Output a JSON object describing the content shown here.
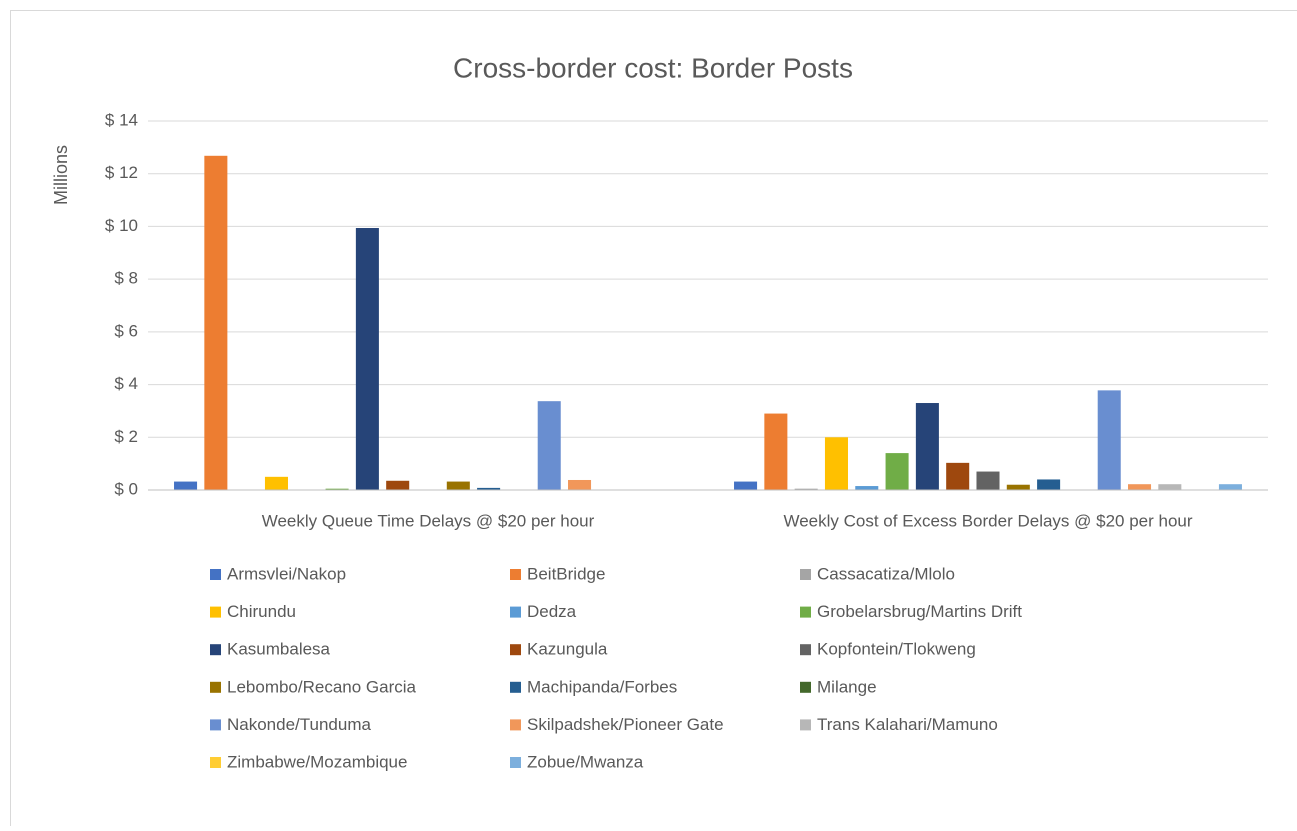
{
  "chart_data": {
    "type": "bar",
    "title": "Cross-border cost: Border Posts",
    "y_label": "Millions",
    "categories": [
      "Weekly Queue Time Delays @ $20 per hour",
      "Weekly Cost of Excess Border Delays @  $20 per hour"
    ],
    "series": [
      {
        "name": "Armsvlei/Nakop",
        "color": "#4472c4",
        "values": [
          0.32,
          0.32
        ]
      },
      {
        "name": "BeitBridge",
        "color": "#ed7d31",
        "values": [
          12.68,
          2.9
        ]
      },
      {
        "name": "Cassacatiza/Mlolo",
        "color": "#a5a5a5",
        "values": [
          0,
          0.05
        ]
      },
      {
        "name": "Chirundu",
        "color": "#ffc000",
        "values": [
          0.5,
          2.0
        ]
      },
      {
        "name": "Dedza",
        "color": "#5b9bd5",
        "values": [
          0,
          0.15
        ]
      },
      {
        "name": "Grobelarsbrug/Martins Drift",
        "color": "#70ad47",
        "values": [
          0.05,
          1.4
        ]
      },
      {
        "name": "Kasumbalesa",
        "color": "#264478",
        "values": [
          9.94,
          3.3
        ]
      },
      {
        "name": "Kazungula",
        "color": "#9e480e",
        "values": [
          0.35,
          1.03
        ]
      },
      {
        "name": "Kopfontein/Tlokweng",
        "color": "#636363",
        "values": [
          0,
          0.7
        ]
      },
      {
        "name": "Lebombo/Recano Garcia",
        "color": "#997300",
        "values": [
          0.32,
          0.2
        ]
      },
      {
        "name": "Machipanda/Forbes",
        "color": "#255e91",
        "values": [
          0.08,
          0.4
        ]
      },
      {
        "name": "Milange",
        "color": "#43682b",
        "values": [
          0,
          0
        ]
      },
      {
        "name": "Nakonde/Tunduma",
        "color": "#698ed0",
        "values": [
          3.37,
          3.78
        ]
      },
      {
        "name": "Skilpadshek/Pioneer Gate",
        "color": "#f1975a",
        "values": [
          0.38,
          0.22
        ]
      },
      {
        "name": "Trans Kalahari/Mamuno",
        "color": "#b7b7b7",
        "values": [
          0,
          0.22
        ]
      },
      {
        "name": "Zimbabwe/Mozambique",
        "color": "#ffcd33",
        "values": [
          0,
          0
        ]
      },
      {
        "name": "Zobue/Mwanza",
        "color": "#7cafdd",
        "values": [
          0,
          0.22
        ]
      }
    ],
    "ylim": [
      0,
      14
    ],
    "yticks": [
      {
        "value": 0,
        "label": "$ 0"
      },
      {
        "value": 2,
        "label": "$ 2"
      },
      {
        "value": 4,
        "label": "$ 4"
      },
      {
        "value": 6,
        "label": "$ 6"
      },
      {
        "value": 8,
        "label": "$ 8"
      },
      {
        "value": 10,
        "label": "$ 10"
      },
      {
        "value": 12,
        "label": "$ 12"
      },
      {
        "value": 14,
        "label": "$ 14"
      }
    ],
    "grid": true,
    "legend": "bottom"
  }
}
